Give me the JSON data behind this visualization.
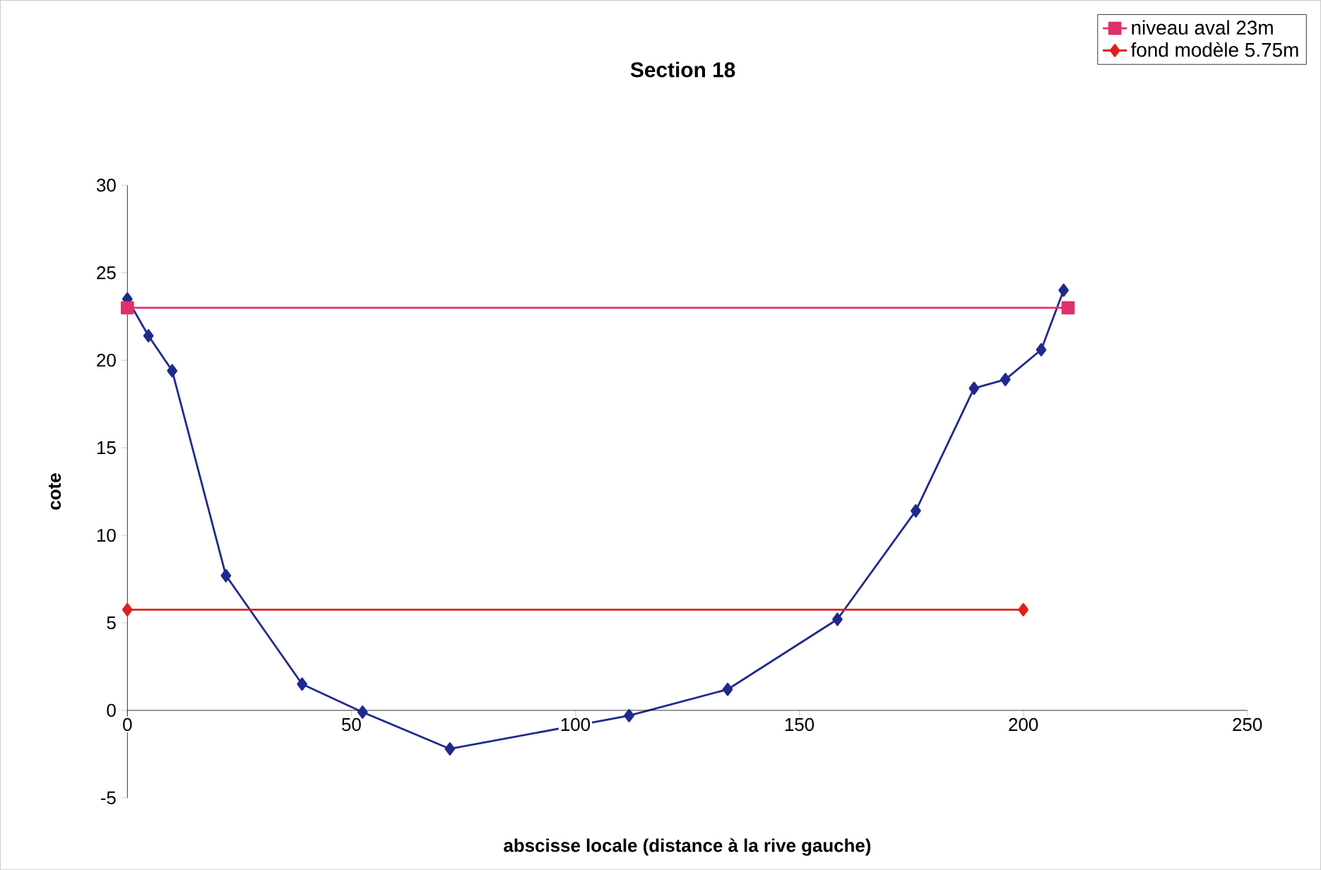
{
  "chart_data": {
    "type": "line",
    "title": "Section 18",
    "xlabel": "abscisse locale (distance à la rive gauche)",
    "ylabel": "cote",
    "xlim": [
      0,
      250
    ],
    "xticks": [
      0,
      50,
      100,
      150,
      200,
      250
    ],
    "ylim": [
      -5,
      30
    ],
    "yticks": [
      -5,
      0,
      5,
      10,
      15,
      20,
      25,
      30
    ],
    "grid": false,
    "legend": "top right",
    "line_style": "solid",
    "series": [
      {
        "color": "#1f2a8c",
        "marker": "diamond",
        "x": [
          0,
          4.7,
          10,
          22,
          39,
          52.5,
          72,
          112,
          134,
          158.5,
          176,
          189,
          196,
          204,
          209
        ],
        "values": [
          23.5,
          21.4,
          19.4,
          7.7,
          1.5,
          -0.1,
          -2.2,
          -0.3,
          1.2,
          5.2,
          11.4,
          18.4,
          18.9,
          20.6,
          24
        ]
      },
      {
        "name": "niveau aval 23m",
        "color": "#e0306a",
        "marker": "square",
        "x": [
          0,
          210
        ],
        "values": [
          23,
          23
        ]
      },
      {
        "name": "fond modèle 5.75m",
        "color": "#e02020",
        "marker": "diamond",
        "x": [
          0,
          200
        ],
        "values": [
          5.75,
          5.75
        ]
      }
    ]
  }
}
